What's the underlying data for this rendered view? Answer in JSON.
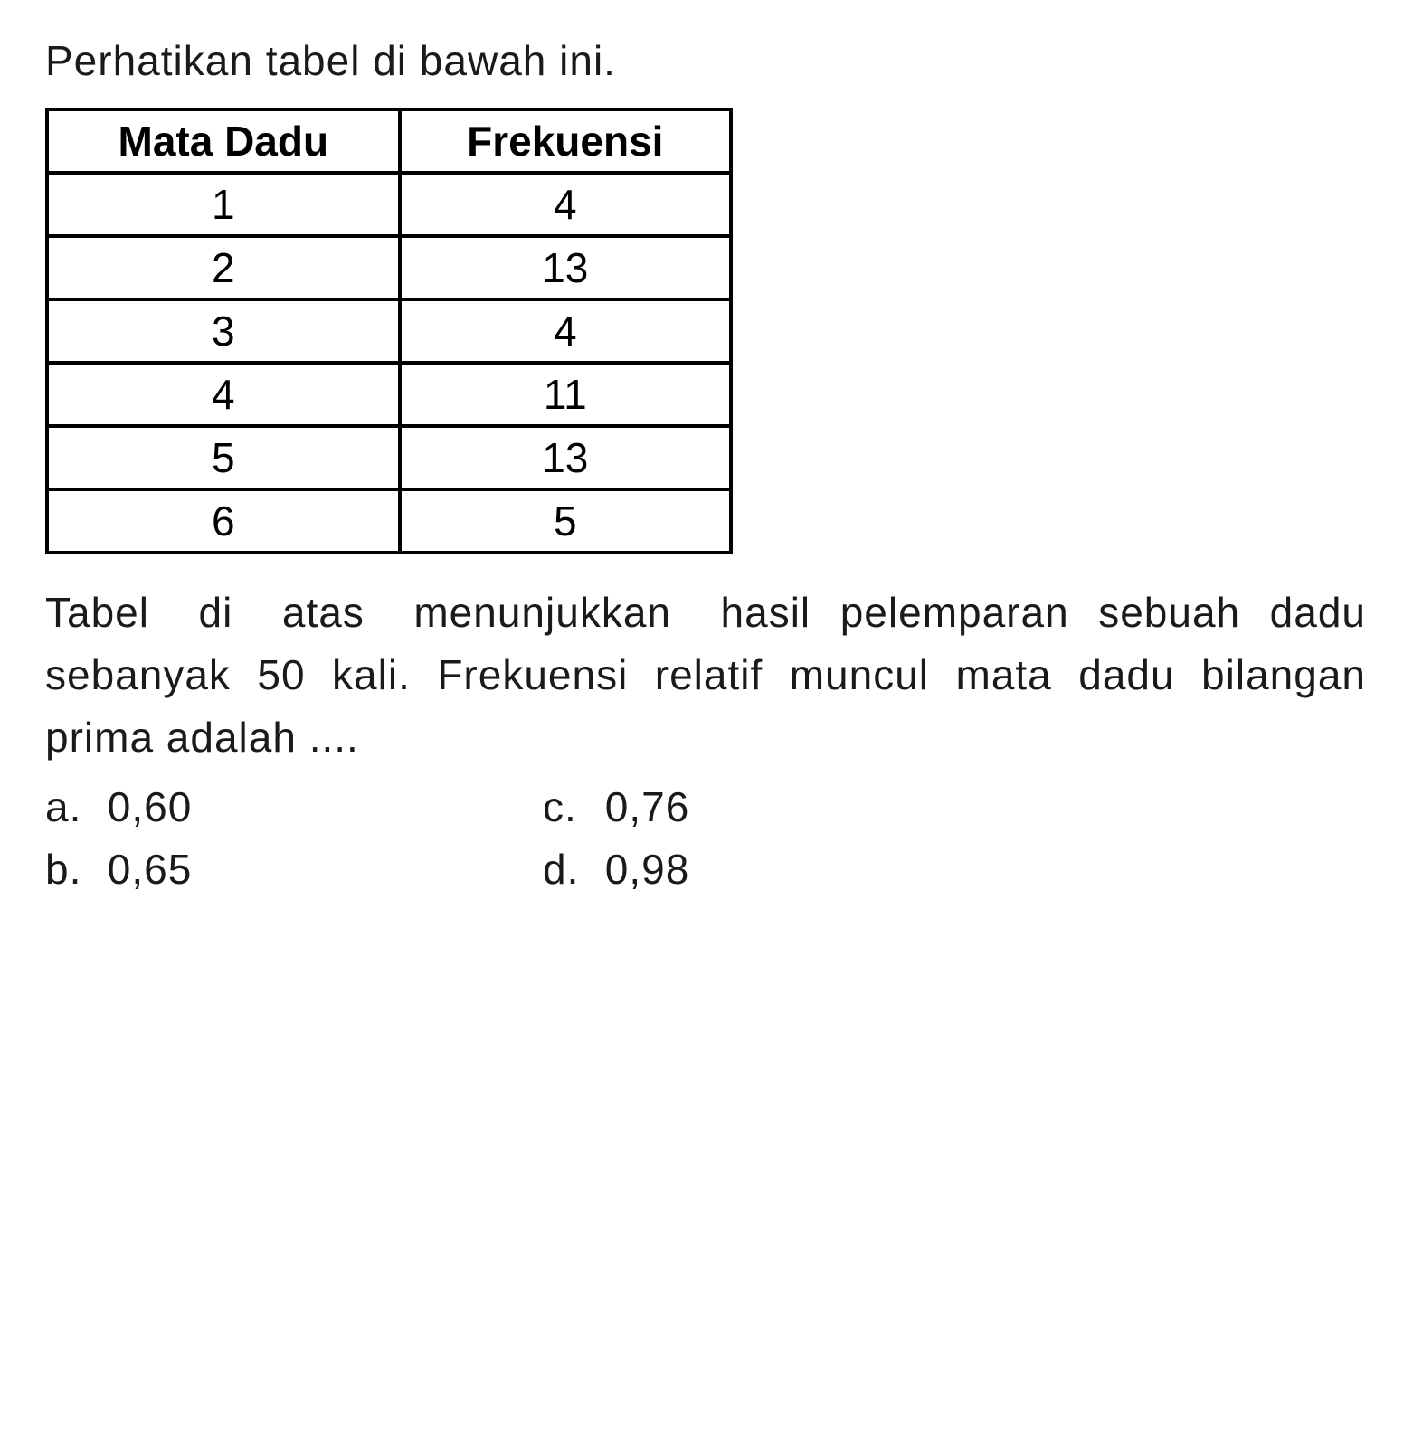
{
  "intro_text": "Perhatikan tabel di bawah ini.",
  "table": {
    "columns": [
      "Mata Dadu",
      "Frekuensi"
    ],
    "rows": [
      [
        "1",
        "4"
      ],
      [
        "2",
        "13"
      ],
      [
        "3",
        "4"
      ],
      [
        "4",
        "11"
      ],
      [
        "5",
        "13"
      ],
      [
        "6",
        "5"
      ]
    ],
    "border_color": "#000000",
    "border_width": 4,
    "header_fontweight": "bold",
    "cell_fontsize": 46,
    "text_align": "center"
  },
  "question_line1": "Tabel di atas menunjukkan hasil",
  "question_line2": "pelemparan sebuah dadu sebanyak 50 kali. Frekuensi relatif muncul mata dadu bilangan prima adalah ....",
  "options": {
    "a": {
      "label": "a.",
      "value": "0,60"
    },
    "b": {
      "label": "b.",
      "value": "0,65"
    },
    "c": {
      "label": "c.",
      "value": "0,76"
    },
    "d": {
      "label": "d.",
      "value": "0,98"
    }
  },
  "colors": {
    "background": "#ffffff",
    "text": "#1a1a1a",
    "table_border": "#000000"
  },
  "typography": {
    "body_fontsize": 46,
    "font_family": "Arial, Helvetica, sans-serif"
  }
}
